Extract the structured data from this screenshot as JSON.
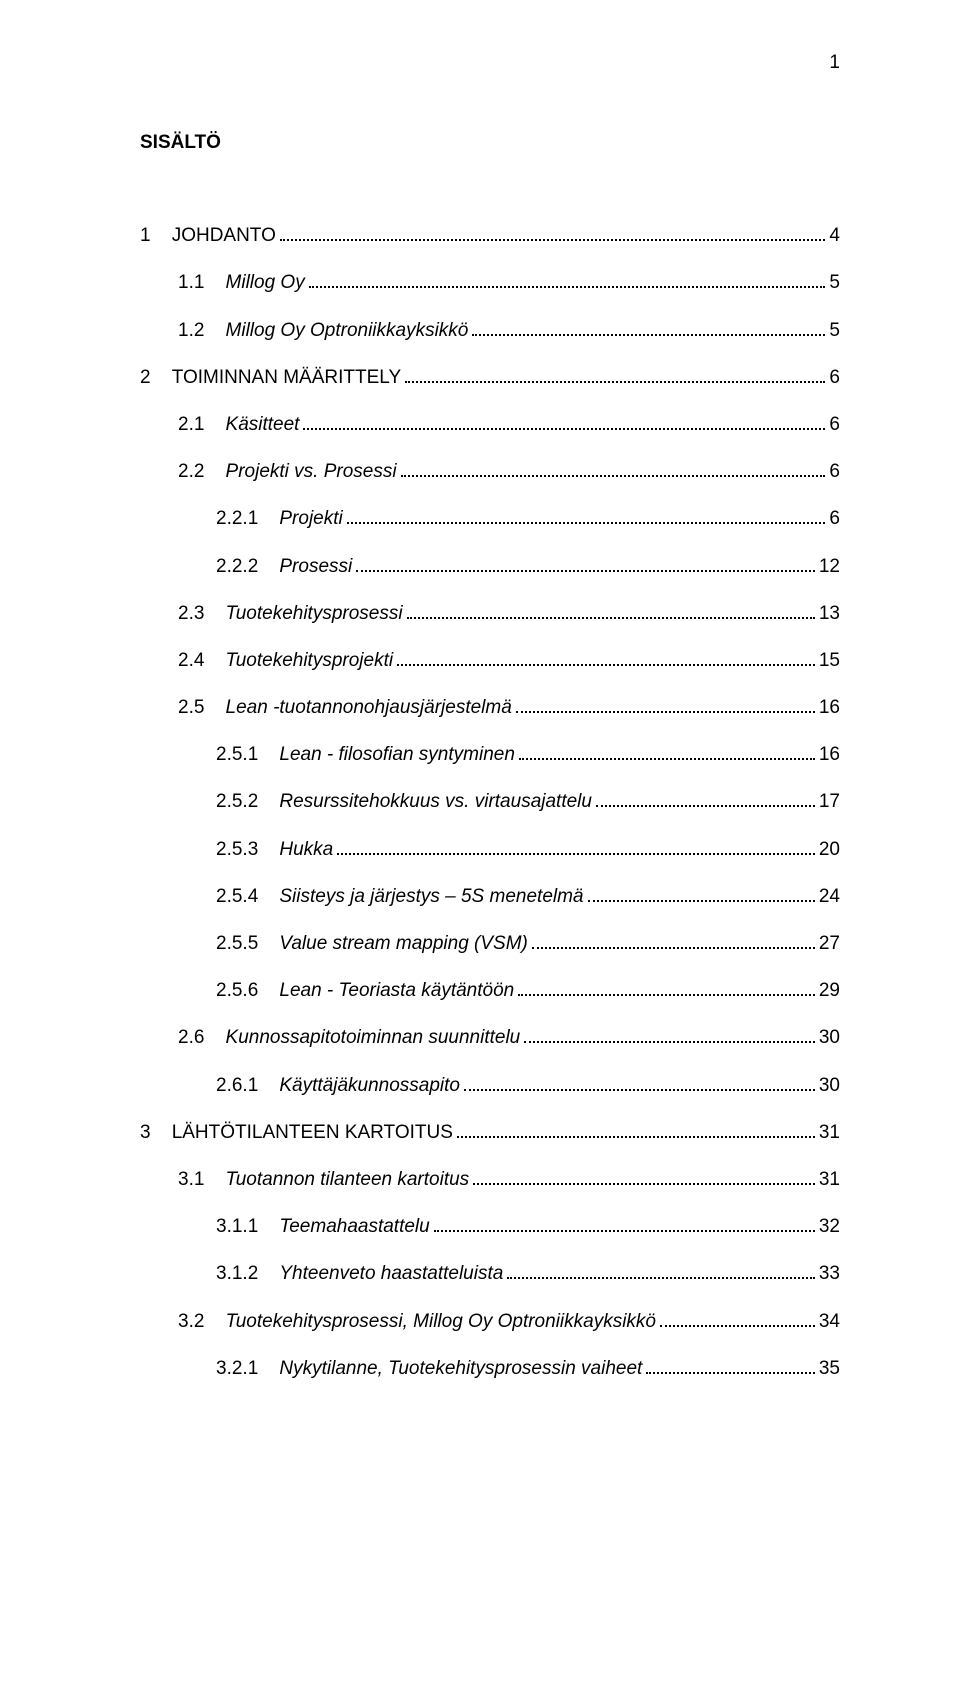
{
  "page_number": "1",
  "title": "SISÄLTÖ",
  "text_color": "#000000",
  "background_color": "#ffffff",
  "font_family": "Arial, Helvetica, sans-serif",
  "base_font_size_pt": 14,
  "toc": [
    {
      "indent": 0,
      "num": "1",
      "label": "JOHDANTO",
      "italic": false,
      "page": "4",
      "num_pad": "    "
    },
    {
      "indent": 1,
      "num": "1.1",
      "label": "Millog Oy",
      "italic": true,
      "page": "5",
      "num_pad": "    "
    },
    {
      "indent": 1,
      "num": "1.2",
      "label": "Millog Oy Optroniikkayksikkö",
      "italic": true,
      "page": "5",
      "num_pad": "    "
    },
    {
      "indent": 0,
      "num": "2",
      "label": "TOIMINNAN MÄÄRITTELY",
      "italic": false,
      "page": "6",
      "num_pad": "    "
    },
    {
      "indent": 1,
      "num": "2.1",
      "label": "Käsitteet",
      "italic": true,
      "page": "6",
      "num_pad": "    "
    },
    {
      "indent": 1,
      "num": "2.2",
      "label": "Projekti vs. Prosessi",
      "italic": true,
      "page": "6",
      "num_pad": "    "
    },
    {
      "indent": 2,
      "num": "2.2.1",
      "label": "Projekti",
      "italic": true,
      "page": "6",
      "num_pad": "    "
    },
    {
      "indent": 2,
      "num": "2.2.2",
      "label": "Prosessi",
      "italic": true,
      "page": "12",
      "num_pad": "    "
    },
    {
      "indent": 1,
      "num": "2.3",
      "label": "Tuotekehitysprosessi",
      "italic": true,
      "page": "13",
      "num_pad": "    "
    },
    {
      "indent": 1,
      "num": "2.4",
      "label": "Tuotekehitysprojekti",
      "italic": true,
      "page": "15",
      "num_pad": "    "
    },
    {
      "indent": 1,
      "num": "2.5",
      "label": "Lean -tuotannonohjausjärjestelmä",
      "italic": true,
      "page": "16",
      "num_pad": "    "
    },
    {
      "indent": 2,
      "num": "2.5.1",
      "label": "Lean - filosofian syntyminen",
      "italic": true,
      "page": "16",
      "num_pad": "    "
    },
    {
      "indent": 2,
      "num": "2.5.2",
      "label": "Resurssitehokkuus vs. virtausajattelu",
      "italic": true,
      "page": "17",
      "num_pad": "    "
    },
    {
      "indent": 2,
      "num": "2.5.3",
      "label": "Hukka",
      "italic": true,
      "page": "20",
      "num_pad": "    "
    },
    {
      "indent": 2,
      "num": "2.5.4",
      "label": "Siisteys ja järjestys – 5S menetelmä",
      "italic": true,
      "page": "24",
      "num_pad": "    "
    },
    {
      "indent": 2,
      "num": "2.5.5",
      "label": "Value stream mapping (VSM)",
      "italic": true,
      "page": "27",
      "num_pad": "    "
    },
    {
      "indent": 2,
      "num": "2.5.6",
      "label": "Lean - Teoriasta käytäntöön",
      "italic": true,
      "page": "29",
      "num_pad": "    "
    },
    {
      "indent": 1,
      "num": "2.6",
      "label": "Kunnossapitotoiminnan suunnittelu",
      "italic": true,
      "page": "30",
      "num_pad": "    "
    },
    {
      "indent": 2,
      "num": "2.6.1",
      "label": "Käyttäjäkunnossapito",
      "italic": true,
      "page": "30",
      "num_pad": "    "
    },
    {
      "indent": 0,
      "num": "3",
      "label": "LÄHTÖTILANTEEN KARTOITUS",
      "italic": false,
      "page": "31",
      "num_pad": "    "
    },
    {
      "indent": 1,
      "num": "3.1",
      "label": "Tuotannon tilanteen kartoitus",
      "italic": true,
      "page": "31",
      "num_pad": "    "
    },
    {
      "indent": 2,
      "num": "3.1.1",
      "label": "Teemahaastattelu",
      "italic": true,
      "page": "32",
      "num_pad": "    "
    },
    {
      "indent": 2,
      "num": "3.1.2",
      "label": "Yhteenveto haastatteluista",
      "italic": true,
      "page": "33",
      "num_pad": "    "
    },
    {
      "indent": 1,
      "num": "3.2",
      "label": "Tuotekehitysprosessi, Millog Oy Optroniikkayksikkö",
      "italic": true,
      "page": "34",
      "num_pad": "    "
    },
    {
      "indent": 2,
      "num": "3.2.1",
      "label": "Nykytilanne, Tuotekehitysprosessin vaiheet",
      "italic": true,
      "page": "35",
      "num_pad": "    "
    }
  ]
}
